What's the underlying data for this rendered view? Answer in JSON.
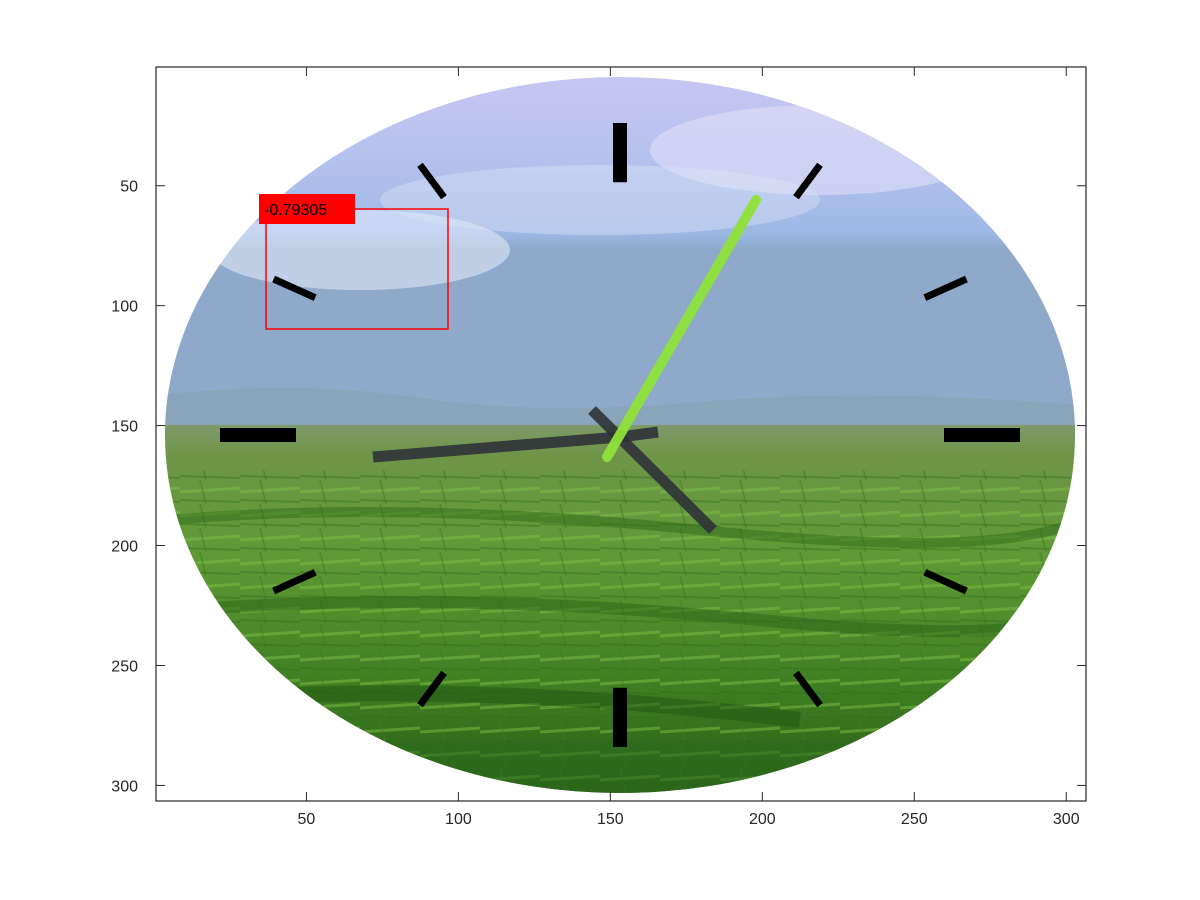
{
  "figure": {
    "x_ticks": [
      "50",
      "100",
      "150",
      "200",
      "250",
      "300"
    ],
    "y_ticks": [
      "50",
      "100",
      "150",
      "200",
      "250",
      "300"
    ],
    "axis_color": "#262626"
  },
  "image": {
    "subject": "clock face over countryside landscape",
    "hand_colors": {
      "hour": "#2f3338",
      "minute": "#2f3338",
      "second": "#8fe23a"
    },
    "marker_color": "#000000"
  },
  "detection": {
    "score_label": "-0.79305",
    "box_color": "#ff0000"
  }
}
